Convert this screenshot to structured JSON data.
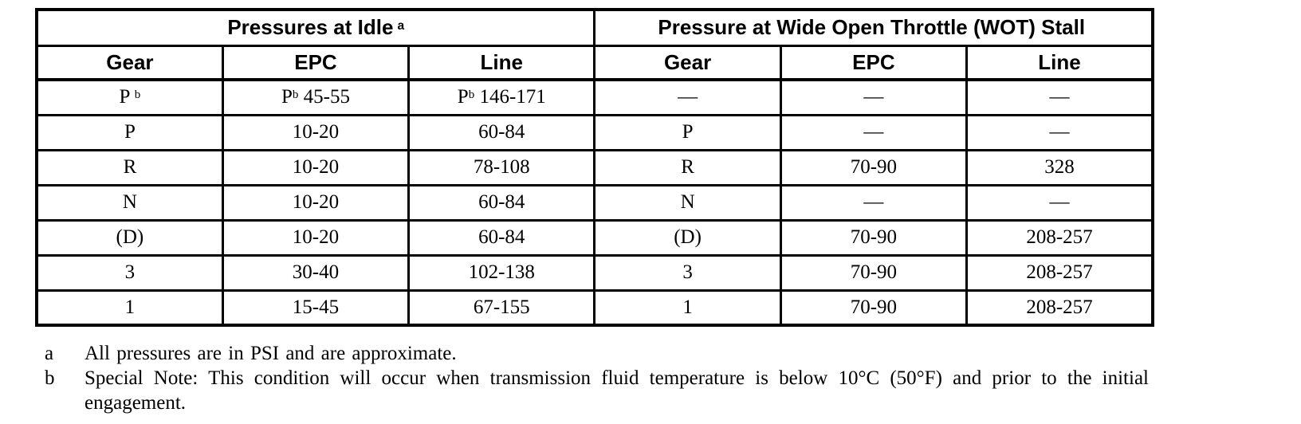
{
  "table": {
    "group_headers": [
      {
        "label": "Pressures at Idle",
        "sup": "a"
      },
      {
        "label": "Pressure at Wide Open Throttle (WOT) Stall",
        "sup": ""
      }
    ],
    "column_headers": [
      "Gear",
      "EPC",
      "Line",
      "Gear",
      "EPC",
      "Line"
    ],
    "rows": [
      [
        [
          {
            "t": "P "
          },
          {
            "s": "b"
          }
        ],
        [
          {
            "t": "P"
          },
          {
            "s": "b"
          },
          {
            "t": " 45-55"
          }
        ],
        [
          {
            "t": "P"
          },
          {
            "s": "b"
          },
          {
            "t": " 146-171"
          }
        ],
        [
          {
            "t": "—"
          }
        ],
        [
          {
            "t": "—"
          }
        ],
        [
          {
            "t": "—"
          }
        ]
      ],
      [
        [
          {
            "t": "P"
          }
        ],
        [
          {
            "t": "10-20"
          }
        ],
        [
          {
            "t": "60-84"
          }
        ],
        [
          {
            "t": "P"
          }
        ],
        [
          {
            "t": "—"
          }
        ],
        [
          {
            "t": "—"
          }
        ]
      ],
      [
        [
          {
            "t": "R"
          }
        ],
        [
          {
            "t": "10-20"
          }
        ],
        [
          {
            "t": "78-108"
          }
        ],
        [
          {
            "t": "R"
          }
        ],
        [
          {
            "t": "70-90"
          }
        ],
        [
          {
            "t": "328"
          }
        ]
      ],
      [
        [
          {
            "t": "N"
          }
        ],
        [
          {
            "t": "10-20"
          }
        ],
        [
          {
            "t": "60-84"
          }
        ],
        [
          {
            "t": "N"
          }
        ],
        [
          {
            "t": "—"
          }
        ],
        [
          {
            "t": "—"
          }
        ]
      ],
      [
        [
          {
            "t": "(D)"
          }
        ],
        [
          {
            "t": "10-20"
          }
        ],
        [
          {
            "t": "60-84"
          }
        ],
        [
          {
            "t": "(D)"
          }
        ],
        [
          {
            "t": "70-90"
          }
        ],
        [
          {
            "t": "208-257"
          }
        ]
      ],
      [
        [
          {
            "t": "3"
          }
        ],
        [
          {
            "t": "30-40"
          }
        ],
        [
          {
            "t": "102-138"
          }
        ],
        [
          {
            "t": "3"
          }
        ],
        [
          {
            "t": "70-90"
          }
        ],
        [
          {
            "t": "208-257"
          }
        ]
      ],
      [
        [
          {
            "t": "1"
          }
        ],
        [
          {
            "t": "15-45"
          }
        ],
        [
          {
            "t": "67-155"
          }
        ],
        [
          {
            "t": "1"
          }
        ],
        [
          {
            "t": "70-90"
          }
        ],
        [
          {
            "t": "208-257"
          }
        ]
      ]
    ]
  },
  "footnotes": [
    {
      "marker": "a",
      "text": "All pressures are in PSI and are approximate."
    },
    {
      "marker": "b",
      "text": "Special Note: This condition will occur when transmission fluid temperature is below 10°C (50°F) and prior to the initial engagement."
    }
  ],
  "colors": {
    "text": "#000000",
    "border": "#000000",
    "background": "#ffffff"
  }
}
